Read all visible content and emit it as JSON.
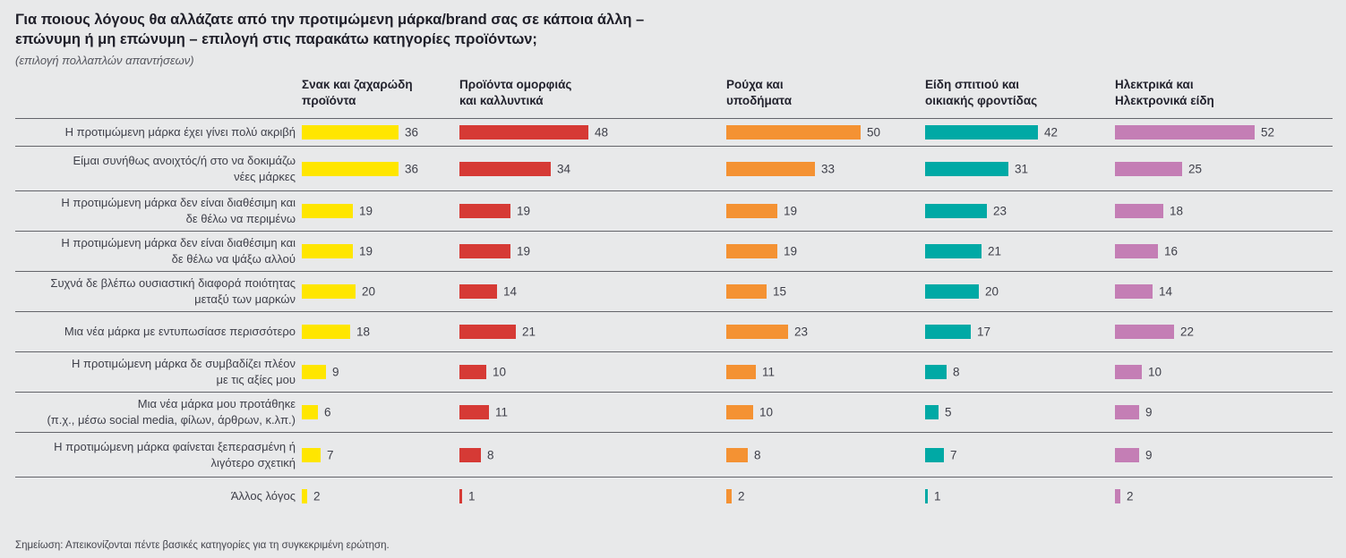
{
  "title": "Για ποιους λόγους θα αλλάζατε από την προτιμώμενη μάρκα/brand σας σε κάποια άλλη –\nεπώνυμη ή μη επώνυμη – επιλογή στις παρακάτω κατηγορίες προϊόντων;",
  "subtitle": "(επιλογή πολλαπλών απαντήσεων)",
  "note": "Σημείωση: Απεικονίζονται πέντε βασικές κατηγορίες για τη συγκεκριμένη ερώτηση.",
  "colors": {
    "background": "#e8e9ea",
    "separator": "#63646a",
    "text": "#3f404a"
  },
  "chart_data": {
    "type": "bar",
    "orientation": "horizontal",
    "unit": "percent",
    "grid": "row-separators",
    "legend_position": "column-headers-top",
    "value_range": [
      0,
      52
    ],
    "categories": [
      "Η προτιμώμενη μάρκα έχει γίνει πολύ ακριβή",
      "Είμαι συνήθως ανοιχτός/ή στο να δοκιμάζω\nνέες μάρκες",
      "Η προτιμώμενη μάρκα δεν είναι διαθέσιμη και\nδε θέλω να περιμένω",
      "Η προτιμώμενη μάρκα δεν είναι διαθέσιμη και\nδε θέλω να ψάξω αλλού",
      "Συχνά δε βλέπω ουσιαστική διαφορά ποιότητας\nμεταξύ των μαρκών",
      "Μια νέα μάρκα με εντυπωσίασε περισσότερο",
      "Η προτιμώμενη μάρκα δε συμβαδίζει πλέον\nμε τις αξίες μου",
      "Μια νέα μάρκα μου προτάθηκε\n(π.χ., μέσω social media, φίλων, άρθρων, κ.λπ.)",
      "Η προτιμώμενη μάρκα φαίνεται ξεπερασμένη ή\nλιγότερο σχετική",
      "Άλλος λόγος"
    ],
    "series": [
      {
        "name": "Σνακ και ζαχαρώδη\nπροϊόντα",
        "color": "#ffe600",
        "values": [
          36,
          36,
          19,
          19,
          20,
          18,
          9,
          6,
          7,
          2
        ]
      },
      {
        "name": "Προϊόντα ομορφιάς\nκαι καλλυντικά",
        "color": "#d63a35",
        "values": [
          48,
          34,
          19,
          19,
          14,
          21,
          10,
          11,
          8,
          1
        ]
      },
      {
        "name": "Ρούχα και\nυποδήματα",
        "color": "#f49233",
        "values": [
          50,
          33,
          19,
          19,
          15,
          23,
          11,
          10,
          8,
          2
        ]
      },
      {
        "name": "Είδη σπιτιού και\nοικιακής φροντίδας",
        "color": "#00a9a5",
        "values": [
          42,
          31,
          23,
          21,
          20,
          17,
          8,
          5,
          7,
          1
        ]
      },
      {
        "name": "Ηλεκτρικά και\nΗλεκτρονικά είδη",
        "color": "#c47eb5",
        "values": [
          52,
          25,
          18,
          16,
          14,
          22,
          10,
          9,
          9,
          2
        ]
      }
    ]
  }
}
